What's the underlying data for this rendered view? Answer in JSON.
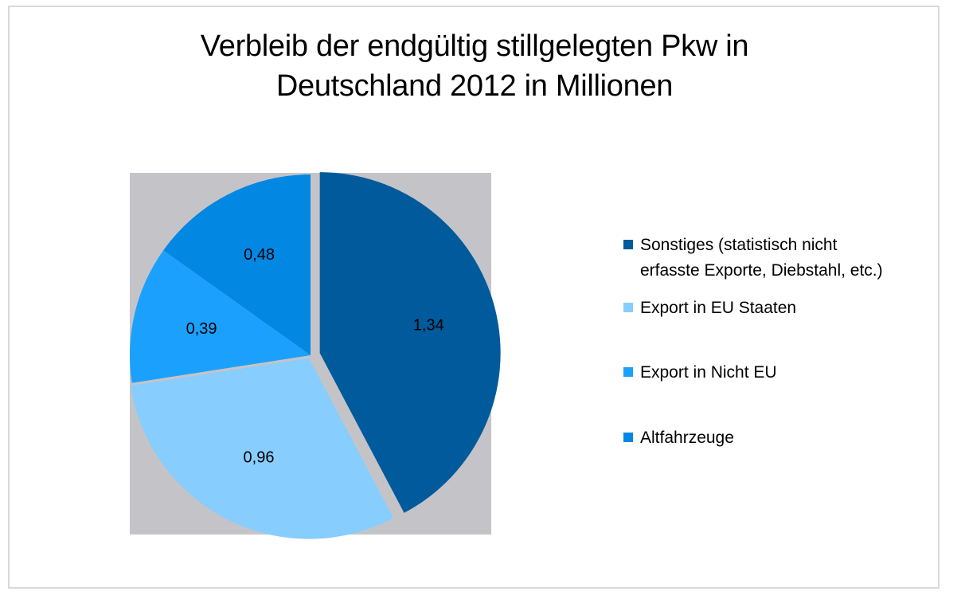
{
  "chart_data": {
    "type": "pie",
    "title": "Verbleib der endgültig stillgelegten Pkw in Deutschland 2012 in Millionen",
    "title_lines": [
      "Verbleib der endgültig stillgelegten Pkw in",
      "Deutschland 2012 in Millionen"
    ],
    "unit": "Millionen",
    "start_angle": "12 o'clock",
    "direction": "clockwise",
    "legend_position": "right",
    "plot_background": "#c4c4c8",
    "slices": [
      {
        "label": "Sonstiges (statistisch nicht erfasste Exporte, Diebstahl, etc.)",
        "value": 1.34,
        "data_label": "1,34",
        "color": "#005a9c",
        "exploded": true
      },
      {
        "label": "Export in EU Staaten",
        "value": 0.96,
        "data_label": "0,96",
        "color": "#87cdfe",
        "exploded": true
      },
      {
        "label": "Export in Nicht EU",
        "value": 0.39,
        "data_label": "0,39",
        "color": "#1ba1fd",
        "exploded": false
      },
      {
        "label": "Altfahrzeuge",
        "value": 0.48,
        "data_label": "0,48",
        "color": "#0287e3",
        "exploded": false
      }
    ]
  },
  "legend": {
    "items": [
      {
        "label_lines": [
          "Sonstiges (statistisch nicht",
          "erfasste Exporte, Diebstahl, etc.)"
        ]
      },
      {
        "label_lines": [
          "Export in EU Staaten"
        ]
      },
      {
        "label_lines": [
          "Export in Nicht EU"
        ]
      },
      {
        "label_lines": [
          "Altfahrzeuge"
        ]
      }
    ]
  }
}
